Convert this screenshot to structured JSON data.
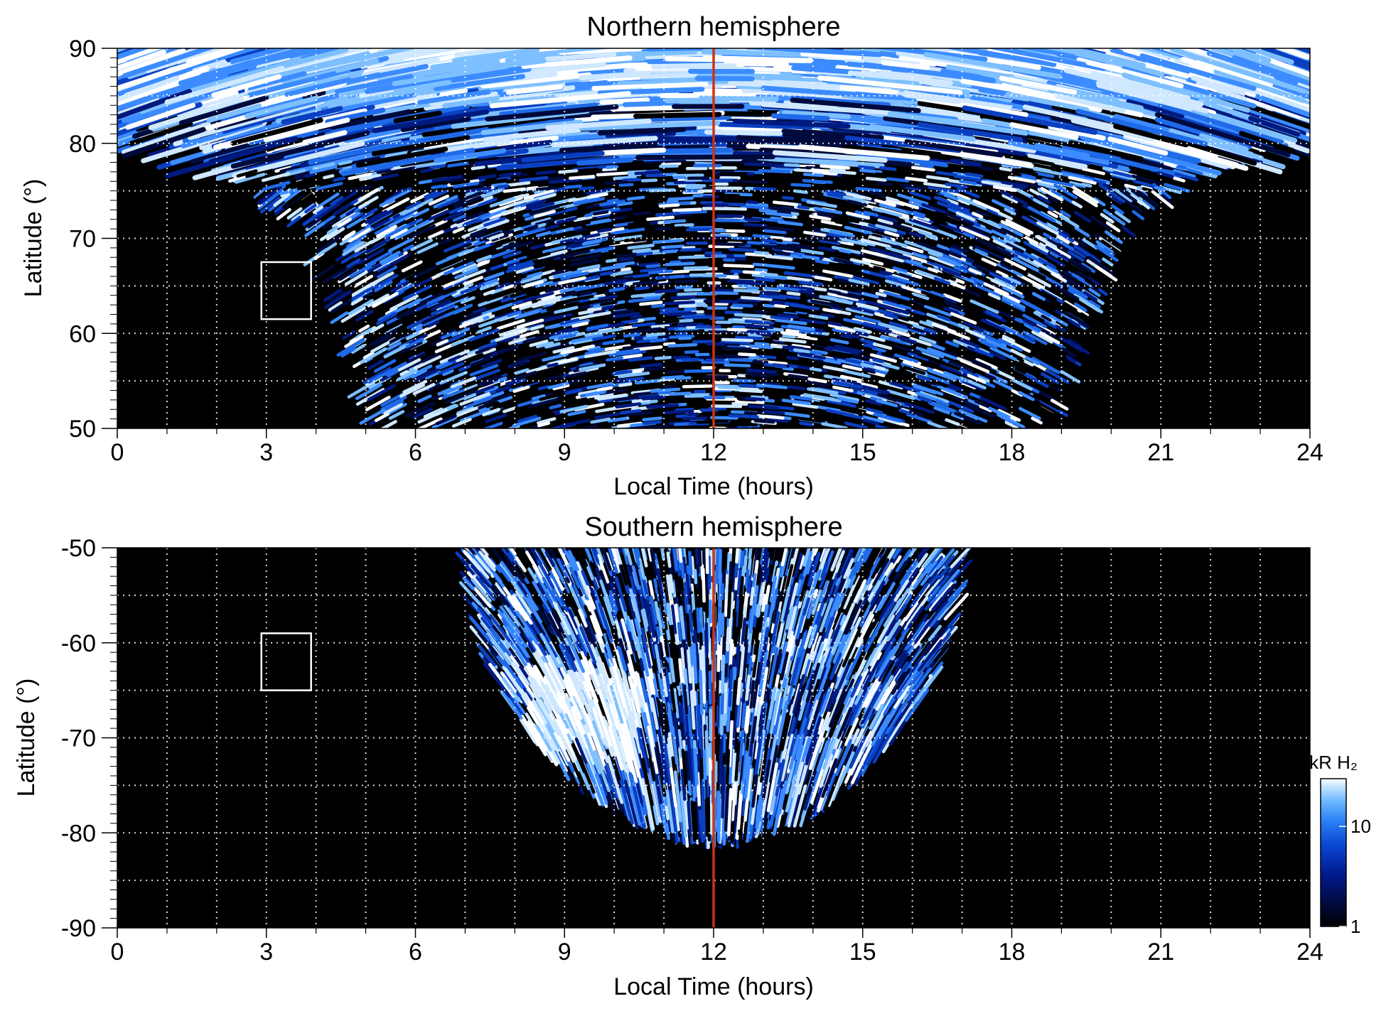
{
  "chart_data": [
    {
      "type": "heatmap",
      "title": "Northern hemisphere",
      "xlabel": "Local Time (hours)",
      "ylabel": "Latitude (°)",
      "xlim": [
        0,
        24
      ],
      "ylim": [
        50,
        90
      ],
      "xticks": [
        "0",
        "3",
        "6",
        "9",
        "12",
        "15",
        "18",
        "21",
        "24"
      ],
      "yticks": [
        "50",
        "60",
        "70",
        "80",
        "90"
      ],
      "grid": true,
      "noon_line_x": 12,
      "emission_region": {
        "lat_band_full_coverage": [
          80,
          90
        ],
        "lt_extent_at_lat_50": [
          5.2,
          18.8
        ],
        "lt_extent_at_lat_70": [
          3.8,
          20.2
        ]
      },
      "reference_box": {
        "lt": [
          2.9,
          3.9
        ],
        "lat": [
          61.5,
          67.5
        ]
      }
    },
    {
      "type": "heatmap",
      "title": "Southern hemisphere",
      "xlabel": "Local Time (hours)",
      "ylabel": "Latitude (°)",
      "xlim": [
        0,
        24
      ],
      "ylim": [
        -90,
        -50
      ],
      "xticks": [
        "0",
        "3",
        "6",
        "9",
        "12",
        "15",
        "18",
        "21",
        "24"
      ],
      "yticks": [
        "-90",
        "-80",
        "-70",
        "-60",
        "-50"
      ],
      "grid": true,
      "noon_line_x": 12,
      "emission_region": {
        "lt_extent_at_lat_-50": [
          7.0,
          17.0
        ],
        "max_south_latitude": -79,
        "bright_spot": {
          "lt": [
            8.2,
            10.5
          ],
          "lat": [
            -72,
            -62
          ]
        }
      },
      "reference_box": {
        "lt": [
          2.9,
          3.9
        ],
        "lat": [
          -65,
          -59
        ]
      }
    }
  ],
  "colorbar": {
    "label": "kR H₂",
    "scale": "log",
    "range": [
      1,
      30
    ],
    "ticks": [
      "10",
      "1"
    ],
    "colors": [
      "#000000",
      "#000a3c",
      "#00198c",
      "#0a46d2",
      "#2d82f5",
      "#6eb9ff",
      "#c8e6ff",
      "#ffffff"
    ]
  },
  "colors": {
    "noon_line": "#cc3311",
    "grid": "#ffffff",
    "background": "#000000"
  }
}
